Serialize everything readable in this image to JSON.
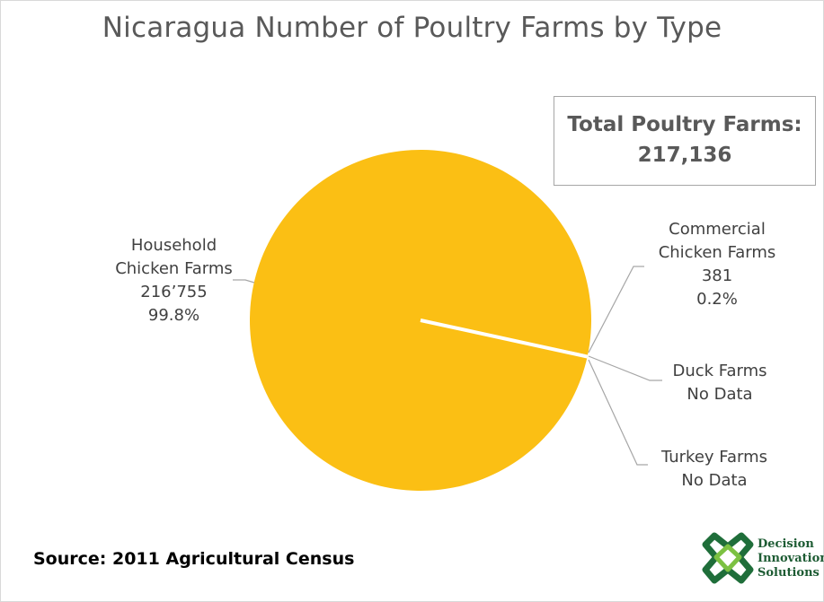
{
  "chart_data": {
    "type": "pie",
    "title": "Nicaragua Number of Poultry Farms by Type",
    "slices": [
      {
        "name_lines": [
          "Household",
          "Chicken Farms"
        ],
        "value": 216755,
        "value_label": "216’755",
        "percent_label": "99.8%",
        "color": "#fbbf14"
      },
      {
        "name_lines": [
          "Commercial",
          "Chicken Farms"
        ],
        "value": 381,
        "value_label": "381",
        "percent_label": "0.2%",
        "color": "#fbbf14"
      },
      {
        "name_lines": [
          "Duck Farms"
        ],
        "value": 0,
        "value_label": "No Data",
        "color": "#fbbf14"
      },
      {
        "name_lines": [
          "Turkey Farms"
        ],
        "value": 0,
        "value_label": "No Data",
        "color": "#fbbf14"
      }
    ],
    "total": {
      "label": "Total Poultry Farms:",
      "value": "217,136"
    },
    "source": "Source: 2011 Agricultural Census"
  },
  "logo": {
    "lines": [
      "Decision",
      "Innovation",
      "Solutions"
    ],
    "color": "#1e5c34"
  },
  "colors": {
    "pie": "#fbbf14",
    "leader": "#a6a6a6",
    "separator": "#ffffff"
  }
}
